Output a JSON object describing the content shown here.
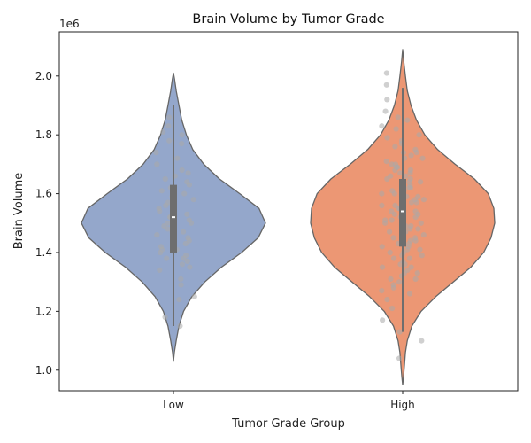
{
  "chart_data": {
    "type": "violin",
    "title": "Brain Volume by Tumor Grade",
    "xlabel": "Tumor Grade Group",
    "ylabel": "Brain Volume",
    "y_scale_label": "1e6",
    "ylim": [
      0.93,
      2.15
    ],
    "y_ticks": [
      1.0,
      1.2,
      1.4,
      1.6,
      1.8,
      2.0
    ],
    "y_tick_labels": [
      "1.0",
      "1.2",
      "1.4",
      "1.6",
      "1.8",
      "2.0"
    ],
    "categories": [
      "Low",
      "High"
    ],
    "grid": false,
    "legend": "none",
    "colors": {
      "Low": "#94a7cb",
      "High": "#ec9774",
      "outline": "#666666",
      "points": "#a9a9a9",
      "box": "#6e6e6e"
    },
    "groups": [
      {
        "name": "Low",
        "min": 1.15,
        "q1": 1.4,
        "median": 1.52,
        "q3": 1.63,
        "max": 1.9,
        "violin_profile": [
          [
            1.03,
            0.0
          ],
          [
            1.06,
            0.01
          ],
          [
            1.1,
            0.03
          ],
          [
            1.15,
            0.06
          ],
          [
            1.2,
            0.11
          ],
          [
            1.25,
            0.2
          ],
          [
            1.3,
            0.34
          ],
          [
            1.35,
            0.52
          ],
          [
            1.4,
            0.74
          ],
          [
            1.45,
            0.92
          ],
          [
            1.5,
            1.0
          ],
          [
            1.55,
            0.93
          ],
          [
            1.6,
            0.72
          ],
          [
            1.65,
            0.5
          ],
          [
            1.7,
            0.33
          ],
          [
            1.75,
            0.21
          ],
          [
            1.8,
            0.14
          ],
          [
            1.85,
            0.09
          ],
          [
            1.9,
            0.06
          ],
          [
            1.95,
            0.03
          ],
          [
            1.99,
            0.012
          ],
          [
            2.01,
            0.0
          ]
        ],
        "points": [
          1.15,
          1.18,
          1.24,
          1.25,
          1.29,
          1.31,
          1.34,
          1.35,
          1.36,
          1.37,
          1.38,
          1.38,
          1.39,
          1.4,
          1.41,
          1.41,
          1.42,
          1.43,
          1.44,
          1.45,
          1.46,
          1.47,
          1.47,
          1.48,
          1.49,
          1.5,
          1.5,
          1.51,
          1.52,
          1.52,
          1.53,
          1.54,
          1.55,
          1.56,
          1.57,
          1.58,
          1.58,
          1.59,
          1.6,
          1.61,
          1.62,
          1.63,
          1.64,
          1.65,
          1.66,
          1.67,
          1.68,
          1.7,
          1.72,
          1.74,
          1.77,
          1.78,
          1.8,
          1.81,
          1.83,
          1.86
        ]
      },
      {
        "name": "High",
        "min": 1.13,
        "q1": 1.42,
        "median": 1.54,
        "q3": 1.65,
        "max": 1.96,
        "violin_profile": [
          [
            0.95,
            0.0
          ],
          [
            0.98,
            0.01
          ],
          [
            1.02,
            0.02
          ],
          [
            1.06,
            0.03
          ],
          [
            1.1,
            0.05
          ],
          [
            1.15,
            0.1
          ],
          [
            1.2,
            0.2
          ],
          [
            1.25,
            0.36
          ],
          [
            1.3,
            0.55
          ],
          [
            1.35,
            0.74
          ],
          [
            1.4,
            0.88
          ],
          [
            1.45,
            0.96
          ],
          [
            1.5,
            1.0
          ],
          [
            1.55,
            0.99
          ],
          [
            1.6,
            0.93
          ],
          [
            1.65,
            0.78
          ],
          [
            1.7,
            0.57
          ],
          [
            1.75,
            0.38
          ],
          [
            1.8,
            0.24
          ],
          [
            1.85,
            0.15
          ],
          [
            1.9,
            0.09
          ],
          [
            1.95,
            0.05
          ],
          [
            2.0,
            0.03
          ],
          [
            2.05,
            0.012
          ],
          [
            2.09,
            0.0
          ]
        ],
        "points": [
          1.04,
          1.1,
          1.13,
          1.17,
          1.21,
          1.24,
          1.26,
          1.27,
          1.28,
          1.29,
          1.3,
          1.31,
          1.31,
          1.32,
          1.33,
          1.33,
          1.34,
          1.35,
          1.35,
          1.36,
          1.36,
          1.37,
          1.38,
          1.38,
          1.39,
          1.39,
          1.4,
          1.4,
          1.41,
          1.41,
          1.42,
          1.42,
          1.43,
          1.43,
          1.44,
          1.44,
          1.45,
          1.45,
          1.46,
          1.46,
          1.47,
          1.47,
          1.48,
          1.48,
          1.49,
          1.49,
          1.5,
          1.5,
          1.51,
          1.51,
          1.52,
          1.52,
          1.53,
          1.53,
          1.54,
          1.54,
          1.55,
          1.55,
          1.56,
          1.56,
          1.57,
          1.57,
          1.58,
          1.58,
          1.59,
          1.59,
          1.6,
          1.6,
          1.61,
          1.61,
          1.62,
          1.62,
          1.63,
          1.63,
          1.64,
          1.64,
          1.65,
          1.65,
          1.66,
          1.66,
          1.67,
          1.67,
          1.68,
          1.68,
          1.69,
          1.69,
          1.7,
          1.7,
          1.71,
          1.72,
          1.72,
          1.73,
          1.74,
          1.74,
          1.75,
          1.76,
          1.77,
          1.78,
          1.79,
          1.8,
          1.82,
          1.83,
          1.85,
          1.86,
          1.88,
          1.92,
          1.97,
          2.01
        ]
      }
    ]
  }
}
